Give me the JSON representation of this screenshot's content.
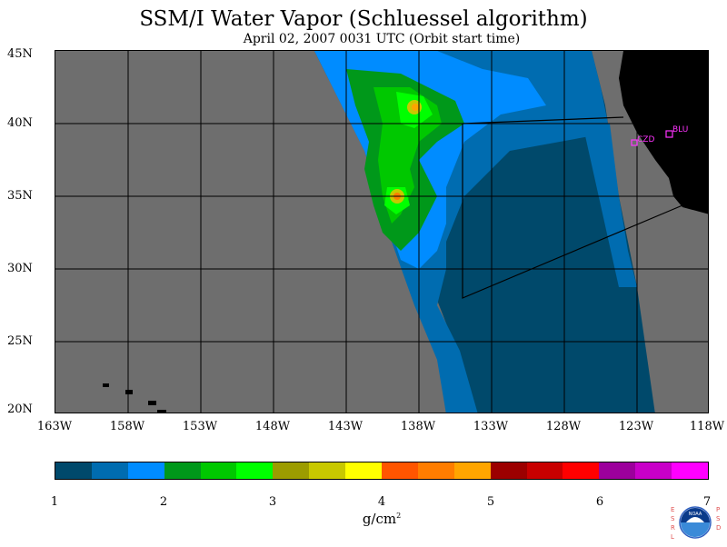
{
  "title": "SSM/I Water Vapor (Schluessel algorithm)",
  "subtitle": "April 02, 2007  0031 UTC  (Orbit start time)",
  "map": {
    "lat_labels": [
      "45N",
      "40N",
      "35N",
      "30N",
      "25N",
      "20N"
    ],
    "lon_labels": [
      "163W",
      "158W",
      "153W",
      "148W",
      "143W",
      "138W",
      "133W",
      "128W",
      "123W",
      "118W"
    ],
    "stations": [
      {
        "label": "CZD"
      },
      {
        "label": "BLU"
      }
    ],
    "colors": {
      "background": "#6e6e6e",
      "land": "#000000",
      "station": "#ff33ff"
    }
  },
  "colorbar": {
    "colors": [
      "#00496b",
      "#006cb0",
      "#008cff",
      "#00981a",
      "#00c800",
      "#00ff00",
      "#9c9c00",
      "#c8c800",
      "#ffff00",
      "#ff5500",
      "#ff7d00",
      "#ffa500",
      "#9c0000",
      "#c80000",
      "#ff0000",
      "#9c009c",
      "#c800c8",
      "#ff00ff"
    ],
    "tick_labels": [
      "1",
      "2",
      "3",
      "4",
      "5",
      "6",
      "7"
    ],
    "units": "g/cm",
    "units_exp": "2"
  },
  "logo": {
    "left_text": "ESRL",
    "right_text": "PSD",
    "center_text": "NOAA"
  }
}
